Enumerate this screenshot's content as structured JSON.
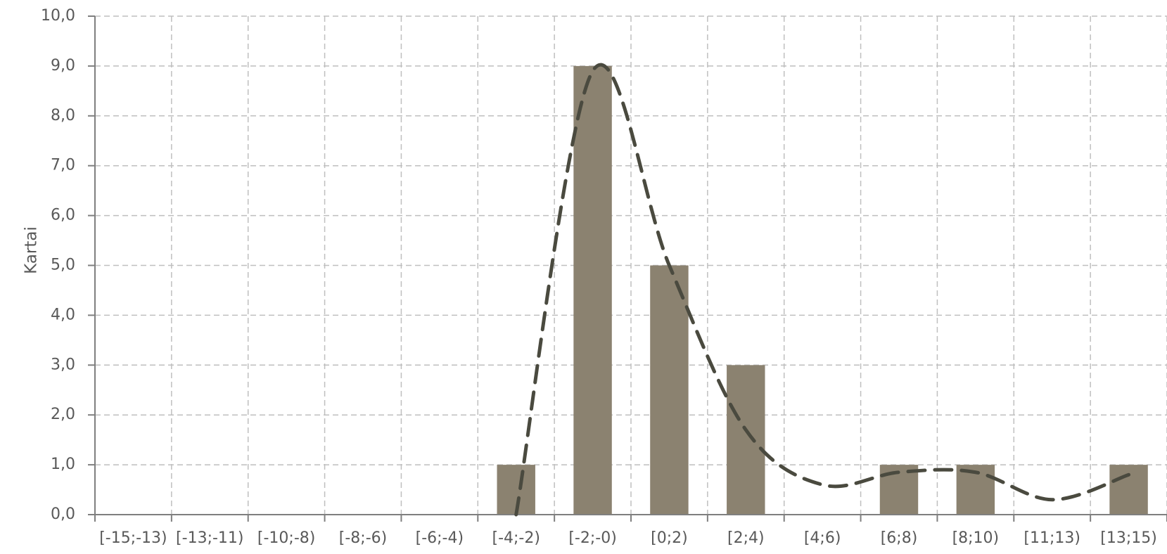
{
  "chart_data": {
    "type": "bar",
    "title": "",
    "xlabel": "",
    "ylabel": "Kartai",
    "ylim": [
      0,
      10
    ],
    "yticks": [
      "0,0",
      "1,0",
      "2,0",
      "3,0",
      "4,0",
      "5,0",
      "6,0",
      "7,0",
      "8,0",
      "9,0",
      "10,0"
    ],
    "categories": [
      "[-15;-13)",
      "[-13;-11)",
      "[-10;-8)",
      "[-8;-6)",
      "[-6;-4)",
      "[-4;-2)",
      "[-2;-0)",
      "[0;2)",
      "[2;4)",
      "[4;6)",
      "[6;8)",
      "[8;10)",
      "[11;13)",
      "[13;15)"
    ],
    "values": [
      0,
      0,
      0,
      0,
      0,
      1,
      9,
      5,
      3,
      0,
      1,
      1,
      0,
      1
    ],
    "grid": true,
    "bar_color": "#8B8270",
    "trend_color": "#4A4A3F",
    "trend_style": "dashed smoothed curve",
    "trend_points": [
      {
        "x": "[-4;-2)",
        "y": 0.0
      },
      {
        "x": "[-2;-0)",
        "y": 8.9
      },
      {
        "x": "[0;2)",
        "y": 5.0
      },
      {
        "x": "[2;4)",
        "y": 1.7
      },
      {
        "x": "[4;6)",
        "y": 0.6
      },
      {
        "x": "[6;8)",
        "y": 0.85
      },
      {
        "x": "[8;10)",
        "y": 0.85
      },
      {
        "x": "[11;13)",
        "y": 0.3
      },
      {
        "x": "[13;15)",
        "y": 0.8
      }
    ]
  }
}
